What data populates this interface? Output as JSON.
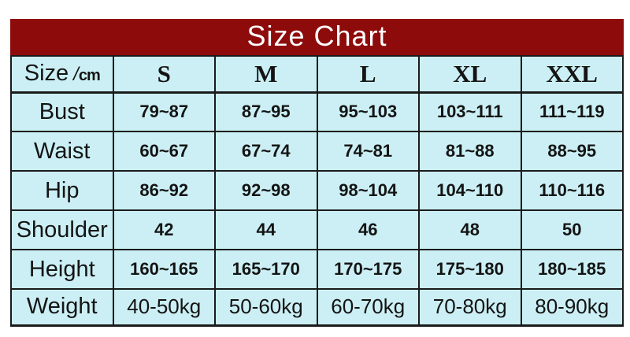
{
  "title": "Size Chart",
  "colors": {
    "header_bg": "#8e0b0b",
    "cell_bg": "#cbeff4",
    "border": "#1b1b1b",
    "title_color": "#ffffff",
    "text": "#141414"
  },
  "table": {
    "corner": {
      "size_label": "Size",
      "slash": "/",
      "unit": "cm"
    },
    "columns": [
      "S",
      "M",
      "L",
      "XL",
      "XXL"
    ],
    "rows": [
      {
        "label": "Bust",
        "values": [
          "79~87",
          "87~95",
          "95~103",
          "103~111",
          "111~119"
        ]
      },
      {
        "label": "Waist",
        "values": [
          "60~67",
          "67~74",
          "74~81",
          "81~88",
          "88~95"
        ]
      },
      {
        "label": "Hip",
        "values": [
          "86~92",
          "92~98",
          "98~104",
          "104~110",
          "110~116"
        ]
      },
      {
        "label": "Shoulder",
        "values": [
          "42",
          "44",
          "46",
          "48",
          "50"
        ]
      },
      {
        "label": "Height",
        "values": [
          "160~165",
          "165~170",
          "170~175",
          "175~180",
          "180~185"
        ]
      },
      {
        "label": "Weight",
        "values": [
          "40-50kg",
          "50-60kg",
          "60-70kg",
          "70-80kg",
          "80-90kg"
        ]
      }
    ]
  },
  "chart_data": {
    "type": "table",
    "title": "Size Chart",
    "unit": "cm",
    "columns": [
      "Size",
      "S",
      "M",
      "L",
      "XL",
      "XXL"
    ],
    "rows": [
      [
        "Bust",
        "79~87",
        "87~95",
        "95~103",
        "103~111",
        "111~119"
      ],
      [
        "Waist",
        "60~67",
        "67~74",
        "74~81",
        "81~88",
        "88~95"
      ],
      [
        "Hip",
        "86~92",
        "92~98",
        "98~104",
        "104~110",
        "110~116"
      ],
      [
        "Shoulder",
        "42",
        "44",
        "46",
        "48",
        "50"
      ],
      [
        "Height",
        "160~165",
        "165~170",
        "170~175",
        "175~180",
        "180~185"
      ],
      [
        "Weight",
        "40-50kg",
        "50-60kg",
        "60-70kg",
        "70-80kg",
        "80-90kg"
      ]
    ]
  }
}
